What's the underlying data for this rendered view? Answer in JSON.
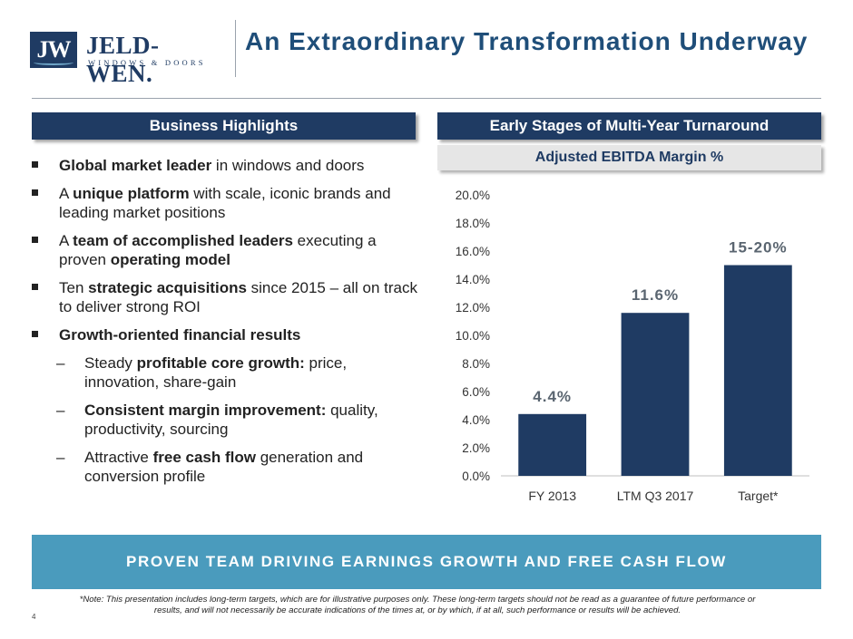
{
  "brand": {
    "badge": "JW",
    "name": "JELD-WEN.",
    "tagline": "WINDOWS & DOORS"
  },
  "title": "An Extraordinary Transformation Underway",
  "left_section": {
    "header": "Business Highlights",
    "bullets": [
      {
        "level": 1,
        "parts": [
          {
            "t": "Global market leader",
            "b": true
          },
          {
            "t": " in windows and doors",
            "b": false
          }
        ]
      },
      {
        "level": 1,
        "parts": [
          {
            "t": "A ",
            "b": false
          },
          {
            "t": "unique platform",
            "b": true
          },
          {
            "t": " with scale, iconic brands and leading market positions",
            "b": false
          }
        ]
      },
      {
        "level": 1,
        "parts": [
          {
            "t": "A ",
            "b": false
          },
          {
            "t": "team of accomplished leaders",
            "b": true
          },
          {
            "t": " executing a proven ",
            "b": false
          },
          {
            "t": "operating model",
            "b": true
          }
        ]
      },
      {
        "level": 1,
        "parts": [
          {
            "t": "Ten ",
            "b": false
          },
          {
            "t": "strategic acquisitions",
            "b": true
          },
          {
            "t": " since 2015 – all on track to deliver strong ROI",
            "b": false
          }
        ]
      },
      {
        "level": 1,
        "parts": [
          {
            "t": "Growth-oriented financial results",
            "b": true
          }
        ]
      },
      {
        "level": 2,
        "parts": [
          {
            "t": "Steady ",
            "b": false
          },
          {
            "t": "profitable core growth:",
            "b": true
          },
          {
            "t": " price, innovation, share-gain",
            "b": false
          }
        ]
      },
      {
        "level": 2,
        "parts": [
          {
            "t": "Consistent margin improvement:",
            "b": true
          },
          {
            "t": " quality, productivity, sourcing",
            "b": false
          }
        ]
      },
      {
        "level": 2,
        "parts": [
          {
            "t": "Attractive ",
            "b": false
          },
          {
            "t": "free cash flow",
            "b": true
          },
          {
            "t": " generation and conversion profile",
            "b": false
          }
        ]
      }
    ]
  },
  "right_section": {
    "header": "Early Stages of Multi-Year Turnaround",
    "subheader": "Adjusted EBITDA Margin %"
  },
  "chart_data": {
    "type": "bar",
    "categories": [
      "FY 2013",
      "LTM Q3 2017",
      "Target*"
    ],
    "values": [
      4.4,
      11.6,
      15.0
    ],
    "data_labels": [
      "4.4%",
      "11.6%",
      "15-20%"
    ],
    "ylim": [
      0,
      20
    ],
    "yticks": [
      "0.0%",
      "2.0%",
      "4.0%",
      "6.0%",
      "8.0%",
      "10.0%",
      "12.0%",
      "14.0%",
      "16.0%",
      "18.0%",
      "20.0%"
    ],
    "title": "",
    "xlabel": "",
    "ylabel": "",
    "grid": false,
    "bar_color": "#1f3b63",
    "label_color": "#5a6570"
  },
  "banner": "PROVEN TEAM DRIVING EARNINGS GROWTH AND FREE CASH FLOW",
  "footnote": "*Note: This presentation includes long-term targets, which are for illustrative purposes only. These long-term targets should not be read as a guarantee of future performance or results, and will not necessarily be accurate indications of the times at, or by which, if at all, such performance or results will be achieved.",
  "page_number": "4"
}
